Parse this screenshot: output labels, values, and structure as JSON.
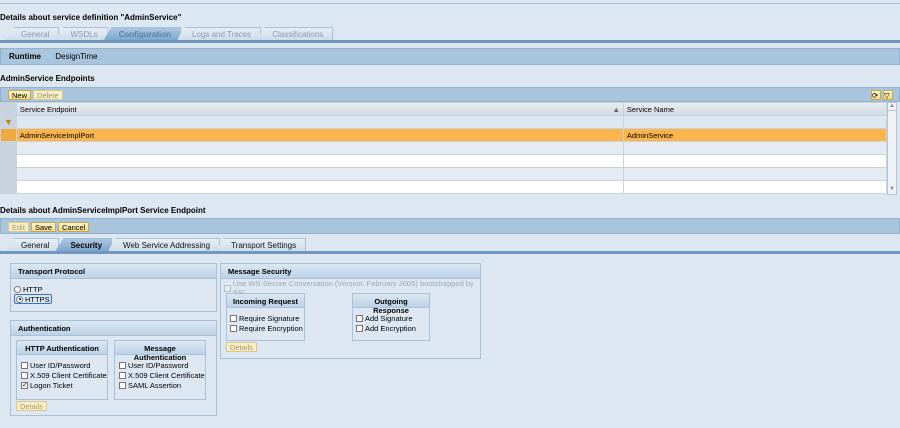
{
  "page_title": "Details about service definition \"AdminService\"",
  "main_tabs": [
    {
      "label": "General"
    },
    {
      "label": "WSDLs"
    },
    {
      "label": "Configuration",
      "active": true
    },
    {
      "label": "Logs and Traces"
    },
    {
      "label": "Classifications"
    }
  ],
  "subnav": {
    "runtime": "Runtime",
    "designtime": "DesignTime"
  },
  "endpoints": {
    "title": "AdminService Endpoints",
    "new_label": "New",
    "delete_label": "Delete",
    "columns": [
      "Service Endpoint",
      "Service Name"
    ],
    "rows": [
      {
        "endpoint": "AdminServiceImplPort",
        "name": "AdminService",
        "selected": true
      }
    ]
  },
  "details": {
    "title": "Details about AdminServiceImplPort Service Endpoint",
    "edit_label": "Edit",
    "save_label": "Save",
    "cancel_label": "Cancel",
    "tabs": [
      {
        "label": "General"
      },
      {
        "label": "Security",
        "active": true
      },
      {
        "label": "Web Service Addressing"
      },
      {
        "label": "Transport Settings"
      }
    ]
  },
  "transport": {
    "title": "Transport Protocol",
    "http": "HTTP",
    "https": "HTTPS",
    "selected": "HTTPS"
  },
  "auth": {
    "title": "Authentication",
    "http_title": "HTTP Authentication",
    "msg_title": "Message Authentication",
    "http_items": [
      {
        "label": "User ID/Password",
        "checked": false
      },
      {
        "label": "X.509 Client Certificate",
        "checked": false
      },
      {
        "label": "Logon Ticket",
        "checked": true
      }
    ],
    "msg_items": [
      {
        "label": "User ID/Password",
        "checked": false
      },
      {
        "label": "X.509 Client Certificate",
        "checked": false
      },
      {
        "label": "SAML Assertion",
        "checked": false
      }
    ],
    "details_label": "Details"
  },
  "msgsec": {
    "title": "Message Security",
    "ws_secure": "Use WS-Secure Conversation (Version: February 2005) bootstrapped by SSL",
    "incoming_title": "Incoming Request",
    "incoming": [
      "Require Signature",
      "Require Encryption"
    ],
    "outgoing_title": "Outgoing Response",
    "outgoing": [
      "Add Signature",
      "Add Encryption"
    ],
    "details_label": "Details"
  },
  "colors": {
    "selected_row": "#fbb54c",
    "bar": "#a9c5de",
    "background": "#dce7f1"
  }
}
